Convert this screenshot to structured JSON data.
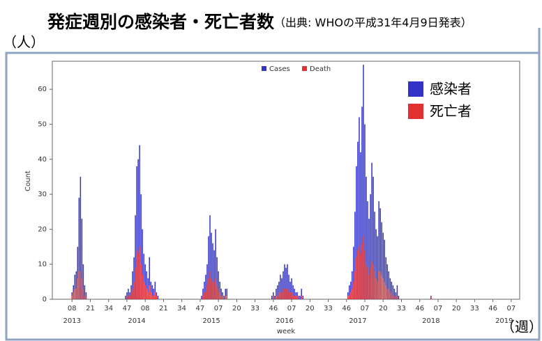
{
  "chart_data": {
    "type": "bar",
    "title": "発症週別の感染者・死亡者数",
    "subtitle": "（出典: WHOの平成31年4月9日発表）",
    "y_unit": "（人）",
    "x_unit": "（週）",
    "xlabel": "week",
    "ylabel": "Count",
    "legend_overlay": [
      "感染者",
      "死亡者"
    ],
    "x": [
      0,
      1,
      2,
      3,
      4,
      5,
      6,
      7,
      8,
      9,
      10,
      38,
      39,
      40,
      41,
      42,
      43,
      44,
      45,
      46,
      47,
      48,
      49,
      50,
      51,
      52,
      53,
      54,
      55,
      56,
      57,
      58,
      59,
      60,
      61,
      92,
      93,
      94,
      95,
      96,
      97,
      98,
      99,
      100,
      101,
      102,
      103,
      104,
      105,
      106,
      107,
      108,
      109,
      110,
      142,
      143,
      144,
      145,
      146,
      147,
      148,
      149,
      150,
      151,
      152,
      153,
      154,
      155,
      156,
      157,
      158,
      159,
      160,
      161,
      162,
      163,
      164,
      196,
      197,
      198,
      199,
      200,
      201,
      202,
      203,
      204,
      205,
      206,
      207,
      208,
      209,
      210,
      211,
      212,
      213,
      214,
      215,
      216,
      217,
      218,
      219,
      220,
      221,
      222,
      223,
      224,
      225,
      226,
      227,
      228,
      229,
      230,
      231,
      232,
      255
    ],
    "series": [
      {
        "name": "Cases",
        "color": "#3333c8",
        "values": [
          2,
          4,
          7,
          8,
          15,
          29,
          35,
          23,
          10,
          4,
          2,
          1,
          2,
          3,
          2,
          4,
          8,
          12,
          24,
          38,
          40,
          44,
          30,
          20,
          13,
          10,
          8,
          6,
          12,
          5,
          4,
          3,
          5,
          2,
          1,
          1,
          3,
          5,
          7,
          10,
          18,
          24,
          19,
          16,
          14,
          20,
          12,
          8,
          5,
          3,
          2,
          1,
          3,
          3,
          1,
          2,
          1,
          3,
          4,
          5,
          7,
          6,
          8,
          10,
          9,
          10,
          7,
          5,
          6,
          4,
          3,
          2,
          2,
          1,
          1,
          3,
          1,
          2,
          4,
          5,
          8,
          15,
          25,
          38,
          45,
          52,
          42,
          55,
          67,
          50,
          35,
          28,
          23,
          30,
          39,
          35,
          25,
          20,
          18,
          28,
          26,
          22,
          19,
          17,
          12,
          10,
          8,
          6,
          5,
          4,
          3,
          2,
          4,
          1,
          1
        ]
      },
      {
        "name": "Death",
        "color": "#e03030",
        "values": [
          1,
          2,
          3,
          3,
          6,
          8,
          8,
          6,
          3,
          1,
          1,
          0,
          1,
          1,
          1,
          2,
          3,
          5,
          9,
          14,
          13,
          15,
          10,
          7,
          5,
          4,
          3,
          2,
          4,
          2,
          1,
          1,
          2,
          1,
          0,
          0,
          1,
          2,
          2,
          4,
          6,
          8,
          6,
          5,
          5,
          6,
          4,
          3,
          2,
          1,
          1,
          0,
          1,
          1,
          0,
          1,
          0,
          1,
          1,
          2,
          2,
          2,
          3,
          3,
          3,
          3,
          2,
          2,
          2,
          1,
          1,
          1,
          1,
          0,
          0,
          1,
          0,
          1,
          1,
          2,
          3,
          5,
          8,
          12,
          14,
          15,
          13,
          16,
          18,
          14,
          10,
          9,
          7,
          9,
          11,
          10,
          8,
          6,
          5,
          8,
          8,
          7,
          6,
          5,
          4,
          3,
          3,
          2,
          2,
          1,
          1,
          1,
          1,
          0,
          1
        ]
      }
    ],
    "xlim": [
      -14,
      318
    ],
    "ylim": [
      0,
      68
    ],
    "yticks": [
      0,
      10,
      20,
      30,
      40,
      50,
      60
    ],
    "xticks": [
      {
        "value": 0,
        "label": "08"
      },
      {
        "value": 13,
        "label": "21"
      },
      {
        "value": 26,
        "label": "34"
      },
      {
        "value": 39,
        "label": "47"
      },
      {
        "value": 52,
        "label": "08"
      },
      {
        "value": 65,
        "label": "21"
      },
      {
        "value": 78,
        "label": "34"
      },
      {
        "value": 91,
        "label": "47"
      },
      {
        "value": 104,
        "label": "07"
      },
      {
        "value": 117,
        "label": "20"
      },
      {
        "value": 130,
        "label": "33"
      },
      {
        "value": 143,
        "label": "46"
      },
      {
        "value": 156,
        "label": "07"
      },
      {
        "value": 169,
        "label": "20"
      },
      {
        "value": 182,
        "label": "33"
      },
      {
        "value": 195,
        "label": "46"
      },
      {
        "value": 208,
        "label": "07"
      },
      {
        "value": 221,
        "label": "20"
      },
      {
        "value": 234,
        "label": "33"
      },
      {
        "value": 247,
        "label": "46"
      },
      {
        "value": 260,
        "label": "07"
      },
      {
        "value": 273,
        "label": "20"
      },
      {
        "value": 286,
        "label": "33"
      },
      {
        "value": 299,
        "label": "46"
      },
      {
        "value": 312,
        "label": "07"
      }
    ],
    "year_ticks": [
      {
        "value": 0,
        "label": "2013"
      },
      {
        "value": 46,
        "label": "2014"
      },
      {
        "value": 99,
        "label": "2015"
      },
      {
        "value": 151,
        "label": "2016"
      },
      {
        "value": 203,
        "label": "2017"
      },
      {
        "value": 255,
        "label": "2018"
      },
      {
        "value": 307,
        "label": "2019"
      }
    ]
  }
}
